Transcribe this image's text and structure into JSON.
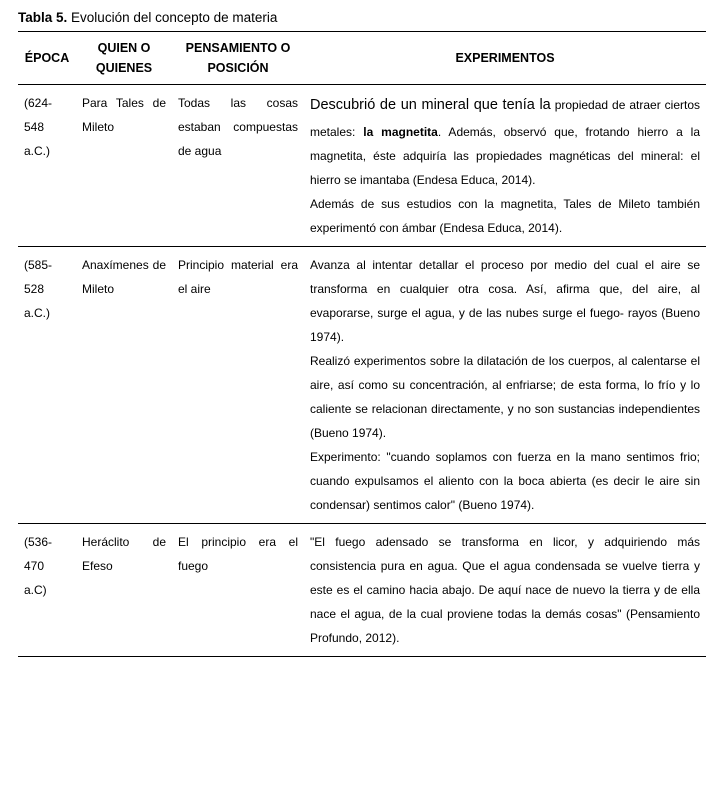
{
  "title_label": "Tabla 5.",
  "title_text": "Evolución del concepto de materia",
  "headers": {
    "epoca": "ÉPOCA",
    "quien_l1": "QUIEN O",
    "quien_l2": "QUIENES",
    "pens_l1": "PENSAMIENTO O",
    "pens_l2": "POSICIÓN",
    "exp": "EXPERIMENTOS"
  },
  "rows": [
    {
      "epoca": "(624-548 a.C.)",
      "quien": "Para Tales de Mileto",
      "pensamiento": "Todas las cosas estaban compuestas de agua",
      "exp_lead": "Descubrió de un mineral que tenía la",
      "exp_before_bold": "propiedad de atraer ciertos metales: ",
      "exp_bold": "la magnetita",
      "exp_after_bold": ". Además, observó que, frotando hierro a la magnetita, éste adquiría las propiedades magnéticas del mineral: el hierro se imantaba (Endesa Educa, 2014).",
      "exp_p2": "Además de sus estudios con la magnetita, Tales de Mileto también experimentó con ámbar (Endesa Educa, 2014)."
    },
    {
      "epoca": "(585-528 a.C.)",
      "quien": "Anaxímenes de Mileto",
      "pensamiento": "Principio material era el aire",
      "exp_p1": "Avanza al intentar detallar el proceso por medio del cual el aire se transforma en cualquier otra cosa. Así, afirma que, del aire, al evaporarse, surge el agua, y de las nubes surge el fuego- rayos (Bueno 1974).",
      "exp_p2": "Realizó experimentos sobre la dilatación de los cuerpos, al calentarse el aire, así como su concentración, al enfriarse; de esta forma, lo frío y lo caliente se relacionan directamente, y no son sustancias independientes (Bueno 1974).",
      "exp_p3": "Experimento: \"cuando soplamos con fuerza en la mano sentimos frio; cuando expulsamos el aliento con la boca abierta (es decir le aire sin condensar) sentimos calor\" (Bueno 1974)."
    },
    {
      "epoca": "(536-470 a.C)",
      "quien": "Heráclito de Efeso",
      "pensamiento": "El principio era el fuego",
      "exp_p1": "\"El fuego adensado se transforma en licor, y adquiriendo más consistencia pura en agua. Que el agua condensada se vuelve tierra y este es el camino hacia abajo. De aquí nace de nuevo la tierra y de ella nace el agua, de la cual proviene todas la demás cosas\" (Pensamiento Profundo, 2012)."
    }
  ]
}
